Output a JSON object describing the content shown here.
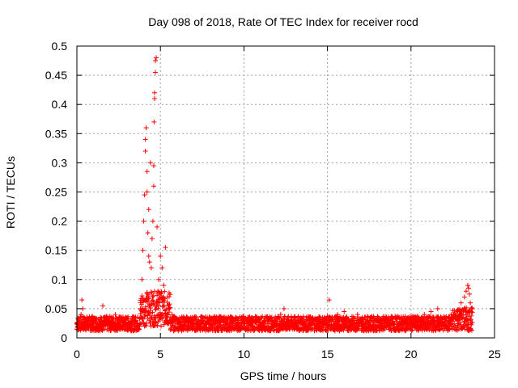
{
  "chart_data": {
    "type": "scatter",
    "title": "Day 098 of 2018, Rate Of TEC Index for receiver rocd",
    "xlabel": "GPS time / hours",
    "ylabel": "ROTI / TECUs",
    "xlim": [
      0,
      25
    ],
    "ylim": [
      0,
      0.5
    ],
    "xticks": [
      "0",
      "5",
      "10",
      "15",
      "20",
      "25"
    ],
    "yticks": [
      "0",
      "0.05",
      "0.1",
      "0.15",
      "0.2",
      "0.25",
      "0.3",
      "0.35",
      "0.4",
      "0.45",
      "0.5"
    ],
    "grid": true,
    "marker": "+",
    "color": "#ff0000",
    "series": [
      {
        "x": [
          0.05,
          0.15,
          0.25,
          0.3,
          0.35,
          0.45,
          0.6,
          0.8,
          1.0,
          1.2,
          1.5,
          1.55,
          1.7,
          2.0,
          2.3,
          2.6,
          2.9,
          3.2,
          3.5,
          3.8,
          3.9,
          3.95,
          4.0,
          4.05,
          4.1,
          4.1,
          4.15,
          4.2,
          4.2,
          4.25,
          4.3,
          4.3,
          4.35,
          4.4,
          4.45,
          4.5,
          4.55,
          4.6,
          4.6,
          4.62,
          4.65,
          4.65,
          4.7,
          4.7,
          4.75,
          4.8,
          4.85,
          4.9,
          5.0,
          5.1,
          5.2,
          5.3,
          5.4,
          5.5,
          5.7,
          6.0,
          6.4,
          6.8,
          7.2,
          7.6,
          8.0,
          8.4,
          8.8,
          9.2,
          9.6,
          10.0,
          10.5,
          11.0,
          11.5,
          12.0,
          12.2,
          12.4,
          12.8,
          13.2,
          13.6,
          14.0,
          14.4,
          14.8,
          15.1,
          15.2,
          15.6,
          16.0,
          16.4,
          16.8,
          17.2,
          17.6,
          18.0,
          18.4,
          18.8,
          19.2,
          19.6,
          20.0,
          20.4,
          20.8,
          21.2,
          21.6,
          22.0,
          22.4,
          22.8,
          23.0,
          23.2,
          23.3,
          23.4,
          23.45,
          23.5,
          23.55,
          23.6
        ],
        "y": [
          0.02,
          0.03,
          0.04,
          0.065,
          0.05,
          0.02,
          0.025,
          0.02,
          0.03,
          0.02,
          0.03,
          0.055,
          0.02,
          0.025,
          0.04,
          0.02,
          0.03,
          0.02,
          0.035,
          0.05,
          0.1,
          0.15,
          0.2,
          0.245,
          0.32,
          0.34,
          0.36,
          0.285,
          0.25,
          0.18,
          0.14,
          0.22,
          0.13,
          0.3,
          0.12,
          0.17,
          0.2,
          0.26,
          0.295,
          0.37,
          0.41,
          0.42,
          0.455,
          0.475,
          0.48,
          0.19,
          0.08,
          0.1,
          0.14,
          0.12,
          0.09,
          0.155,
          0.07,
          0.05,
          0.04,
          0.03,
          0.02,
          0.035,
          0.02,
          0.025,
          0.03,
          0.02,
          0.035,
          0.02,
          0.02,
          0.03,
          0.02,
          0.015,
          0.02,
          0.025,
          0.04,
          0.05,
          0.03,
          0.02,
          0.025,
          0.03,
          0.02,
          0.035,
          0.065,
          0.03,
          0.04,
          0.045,
          0.03,
          0.04,
          0.02,
          0.035,
          0.03,
          0.025,
          0.03,
          0.02,
          0.025,
          0.02,
          0.03,
          0.04,
          0.045,
          0.05,
          0.035,
          0.04,
          0.045,
          0.06,
          0.07,
          0.08,
          0.09,
          0.085,
          0.075,
          0.06,
          0.05
        ]
      }
    ]
  }
}
